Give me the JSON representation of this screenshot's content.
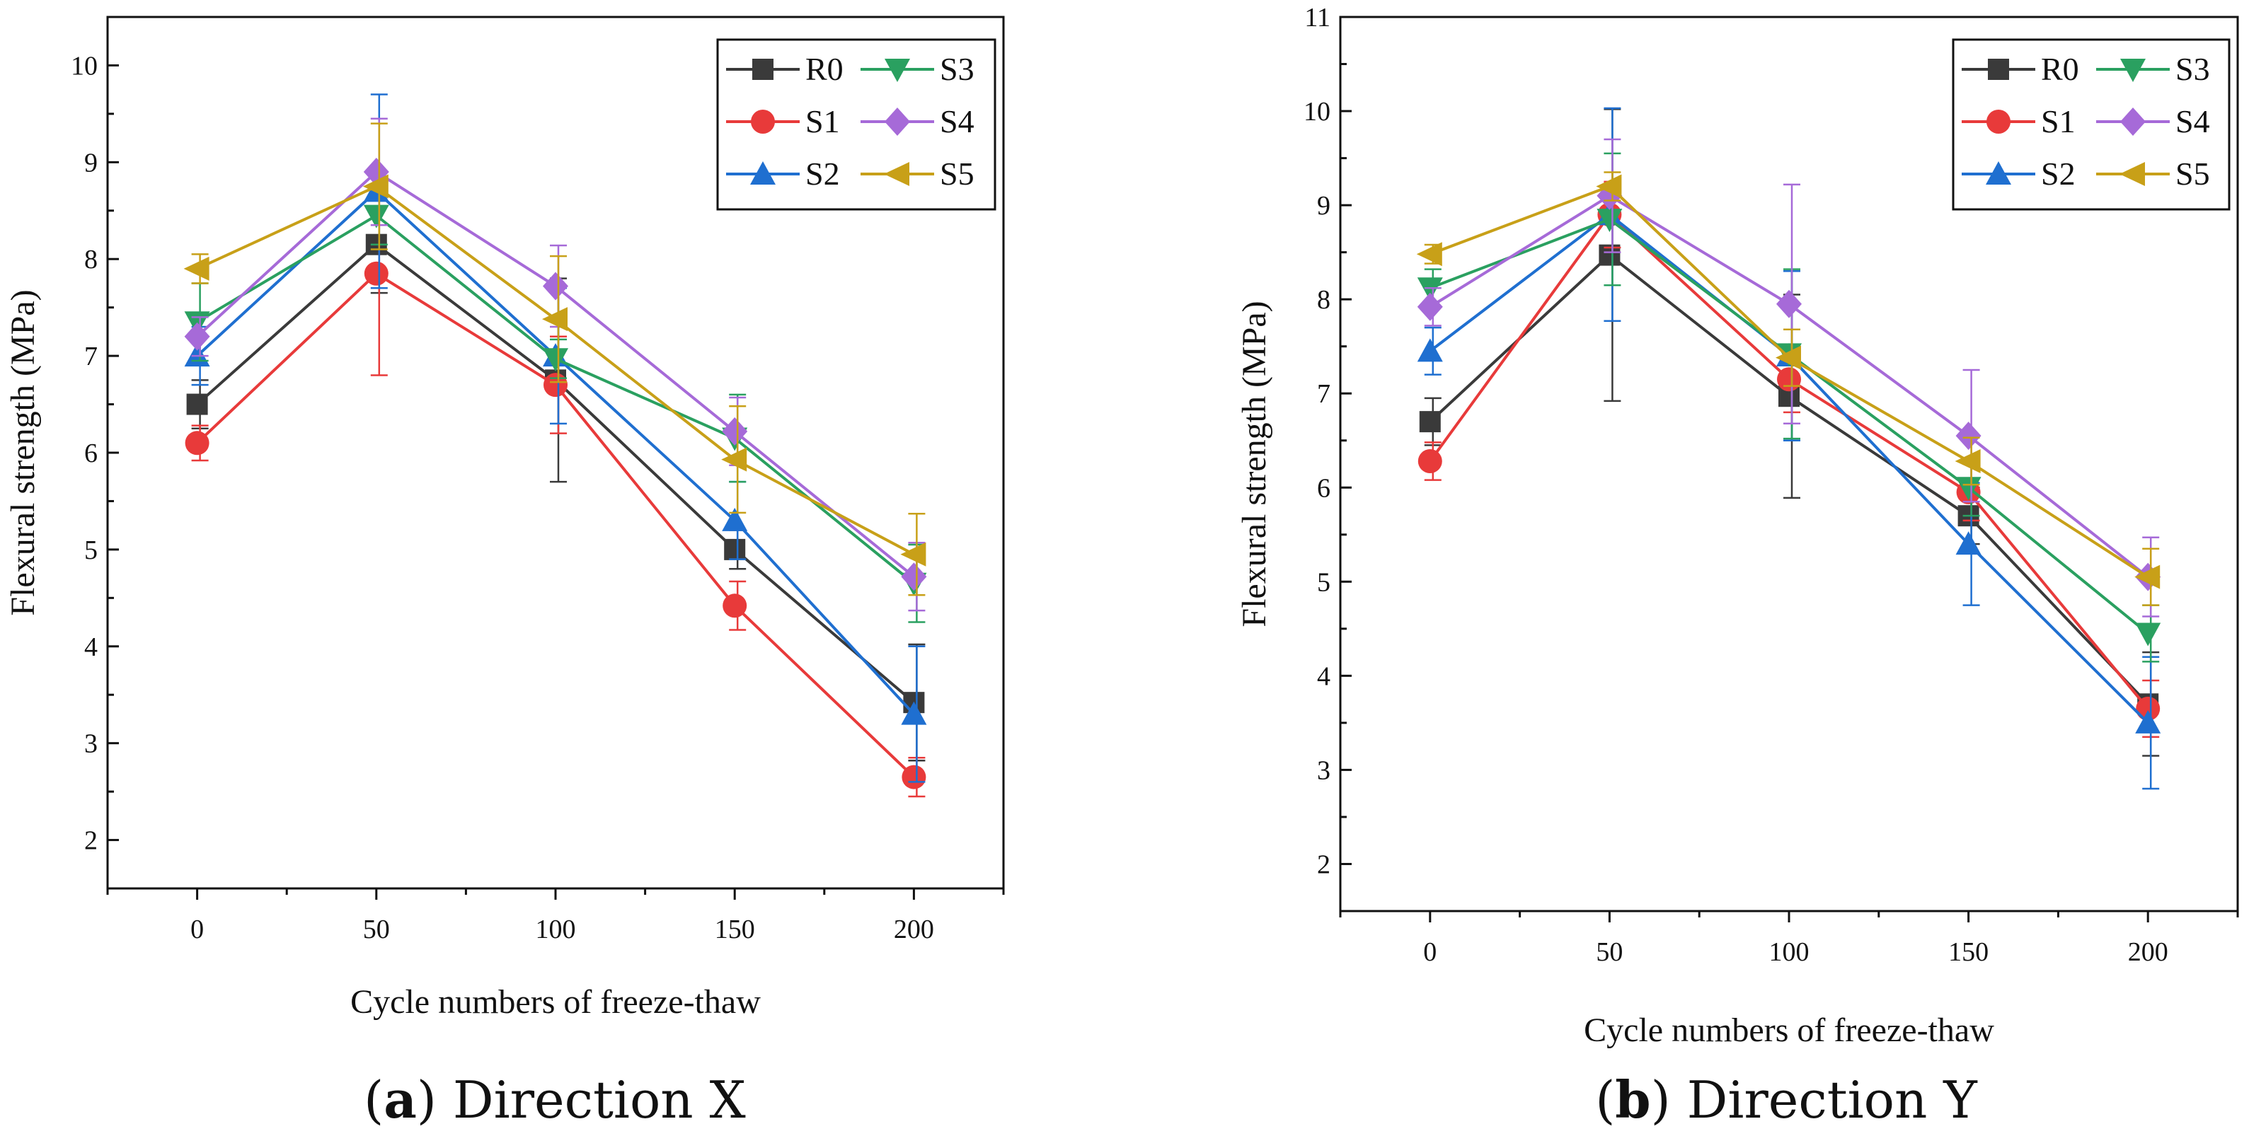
{
  "chart_data": [
    {
      "type": "line",
      "caption": {
        "letter": "a",
        "open": "(",
        "close": ")",
        "text": " Direction X"
      },
      "xlabel": "Cycle numbers of freeze-thaw",
      "ylabel": "Flexural strength (MPa)",
      "x": [
        0,
        50,
        100,
        150,
        200
      ],
      "xticks": [
        "0",
        "50",
        "100",
        "150",
        "200"
      ],
      "xlim": [
        -25,
        225
      ],
      "yticks": [
        "2",
        "3",
        "4",
        "5",
        "6",
        "7",
        "8",
        "9",
        "10"
      ],
      "ylim": [
        1.5,
        10.5
      ],
      "legend_position": "top-right",
      "series": [
        {
          "name": "R0",
          "color": "#3a3a3a",
          "marker": "square",
          "values": [
            6.5,
            8.15,
            6.75,
            5.0,
            3.42
          ],
          "errors": [
            0.25,
            0.5,
            1.05,
            0.2,
            0.6
          ]
        },
        {
          "name": "S1",
          "color": "#e83a3a",
          "marker": "circle",
          "values": [
            6.1,
            7.85,
            6.7,
            4.42,
            2.65
          ],
          "errors": [
            0.18,
            1.05,
            0.5,
            0.25,
            0.2
          ]
        },
        {
          "name": "S2",
          "color": "#1f6fd0",
          "marker": "triangle-up",
          "values": [
            7.0,
            8.7,
            7.0,
            5.3,
            3.3
          ],
          "errors": [
            0.3,
            1.0,
            0.7,
            0.4,
            0.7
          ]
        },
        {
          "name": "S3",
          "color": "#2aa060",
          "marker": "triangle-down",
          "values": [
            7.35,
            8.45,
            6.97,
            6.15,
            4.65
          ],
          "errors": [
            0.4,
            0.3,
            0.2,
            0.45,
            0.4
          ]
        },
        {
          "name": "S4",
          "color": "#a66ad8",
          "marker": "diamond",
          "values": [
            7.2,
            8.9,
            7.72,
            6.22,
            4.72
          ],
          "errors": [
            0.2,
            0.55,
            0.42,
            0.35,
            0.35
          ]
        },
        {
          "name": "S5",
          "color": "#c8a018",
          "marker": "triangle-left",
          "values": [
            7.9,
            8.75,
            7.38,
            5.93,
            4.95
          ],
          "errors": [
            0.15,
            0.65,
            0.65,
            0.55,
            0.42
          ]
        }
      ]
    },
    {
      "type": "line",
      "caption": {
        "letter": "b",
        "open": "(",
        "close": ")",
        "text": " Direction Y"
      },
      "xlabel": "Cycle numbers of freeze-thaw",
      "ylabel": "Flexural strength (MPa)",
      "x": [
        0,
        50,
        100,
        150,
        200
      ],
      "xticks": [
        "0",
        "50",
        "100",
        "150",
        "200"
      ],
      "xlim": [
        -25,
        225
      ],
      "yticks": [
        "2",
        "3",
        "4",
        "5",
        "6",
        "7",
        "8",
        "9",
        "10",
        "11"
      ],
      "ylim": [
        1.5,
        11
      ],
      "legend_position": "top-right",
      "series": [
        {
          "name": "R0",
          "color": "#3a3a3a",
          "marker": "square",
          "values": [
            6.7,
            8.47,
            6.97,
            5.7,
            3.7
          ],
          "errors": [
            0.25,
            1.55,
            1.08,
            0.3,
            0.55
          ]
        },
        {
          "name": "S1",
          "color": "#e83a3a",
          "marker": "circle",
          "values": [
            6.28,
            8.9,
            7.15,
            5.95,
            3.65
          ],
          "errors": [
            0.2,
            0.35,
            0.35,
            0.3,
            0.3
          ]
        },
        {
          "name": "S2",
          "color": "#1f6fd0",
          "marker": "triangle-up",
          "values": [
            7.45,
            8.9,
            7.4,
            5.4,
            3.5
          ],
          "errors": [
            0.25,
            1.13,
            0.9,
            0.65,
            0.7
          ]
        },
        {
          "name": "S3",
          "color": "#2aa060",
          "marker": "triangle-down",
          "values": [
            8.12,
            8.85,
            7.42,
            6.0,
            4.45
          ],
          "errors": [
            0.2,
            0.7,
            0.9,
            0.3,
            0.3
          ]
        },
        {
          "name": "S4",
          "color": "#a66ad8",
          "marker": "diamond",
          "values": [
            7.92,
            9.1,
            7.95,
            6.55,
            5.05
          ],
          "errors": [
            0.2,
            0.6,
            1.27,
            0.7,
            0.42
          ]
        },
        {
          "name": "S5",
          "color": "#c8a018",
          "marker": "triangle-left",
          "values": [
            8.48,
            9.2,
            7.38,
            6.28,
            5.05
          ],
          "errors": [
            0.1,
            0.15,
            0.3,
            0.25,
            0.3
          ]
        }
      ]
    }
  ]
}
